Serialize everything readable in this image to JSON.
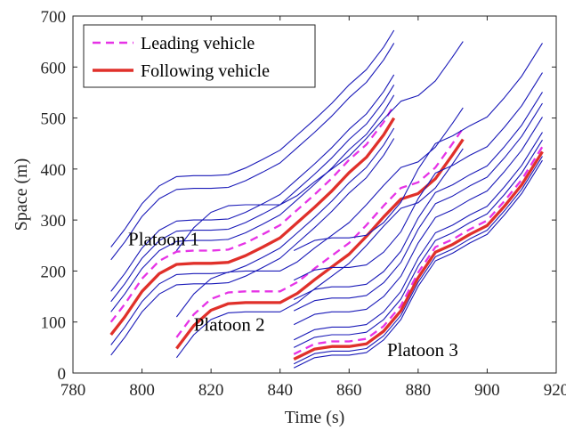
{
  "chart_data": {
    "type": "line",
    "xlabel": "Time (s)",
    "ylabel": "Space (m)",
    "xlim": [
      780,
      920
    ],
    "ylim": [
      0,
      700
    ],
    "xticks": [
      780,
      800,
      820,
      840,
      860,
      880,
      900,
      920
    ],
    "yticks": [
      0,
      100,
      200,
      300,
      400,
      500,
      600,
      700
    ],
    "grid": false,
    "legend": {
      "placement": "top-left",
      "entries": [
        {
          "label": "Leading vehicle",
          "color": "#e633e6",
          "style": "dashed"
        },
        {
          "label": "Following vehicle",
          "color": "#e0302a",
          "style": "solid"
        }
      ]
    },
    "annotations": [
      {
        "text": "Platoon 1",
        "x": 796,
        "y": 263
      },
      {
        "text": "Platoon 2",
        "x": 815,
        "y": 95
      },
      {
        "text": "Platoon 3",
        "x": 871,
        "y": 45
      }
    ],
    "colors": {
      "other_vehicles": "#1a1ab8",
      "leading": "#e633e6",
      "following": "#e0302a"
    },
    "platoons": [
      {
        "name": "Platoon 1",
        "t_start": 791,
        "t_end": 873,
        "base_profile": [
          [
            791,
            0
          ],
          [
            795,
            35
          ],
          [
            800,
            85
          ],
          [
            805,
            120
          ],
          [
            810,
            138
          ],
          [
            815,
            140
          ],
          [
            820,
            140
          ],
          [
            825,
            142
          ],
          [
            830,
            155
          ],
          [
            835,
            172
          ],
          [
            840,
            190
          ],
          [
            845,
            220
          ],
          [
            850,
            250
          ],
          [
            855,
            282
          ],
          [
            860,
            318
          ],
          [
            865,
            348
          ],
          [
            870,
            392
          ],
          [
            873,
            425
          ]
        ],
        "offsets": {
          "following": 75,
          "leading": 100,
          "others": [
            35,
            55,
            120,
            140,
            160,
            222,
            247
          ]
        }
      },
      {
        "name": "Platoon 2",
        "t_start": 810,
        "t_end": 893,
        "base_profile": [
          [
            810,
            0
          ],
          [
            815,
            45
          ],
          [
            820,
            75
          ],
          [
            825,
            88
          ],
          [
            830,
            90
          ],
          [
            835,
            90
          ],
          [
            840,
            90
          ],
          [
            845,
            108
          ],
          [
            850,
            135
          ],
          [
            855,
            160
          ],
          [
            860,
            185
          ],
          [
            865,
            220
          ],
          [
            870,
            258
          ],
          [
            875,
            293
          ],
          [
            880,
            304
          ],
          [
            885,
            333
          ],
          [
            890,
            380
          ],
          [
            893,
            410
          ]
        ],
        "offsets": {
          "following": 48,
          "leading": 70,
          "others": [
            30,
            110,
            240
          ]
        }
      },
      {
        "name": "Platoon 3",
        "t_start": 844,
        "t_end": 916,
        "base_profile": [
          [
            844,
            0
          ],
          [
            850,
            20
          ],
          [
            855,
            25
          ],
          [
            860,
            25
          ],
          [
            865,
            30
          ],
          [
            870,
            55
          ],
          [
            875,
            95
          ],
          [
            880,
            160
          ],
          [
            885,
            210
          ],
          [
            890,
            225
          ],
          [
            895,
            245
          ],
          [
            900,
            262
          ],
          [
            905,
            300
          ],
          [
            910,
            342
          ],
          [
            916,
            407
          ]
        ],
        "offsets": {
          "following": 27,
          "leading": 37,
          "others": [
            10,
            18,
            50,
            65,
            95,
            122,
            144,
            182,
            240
          ]
        }
      }
    ]
  }
}
